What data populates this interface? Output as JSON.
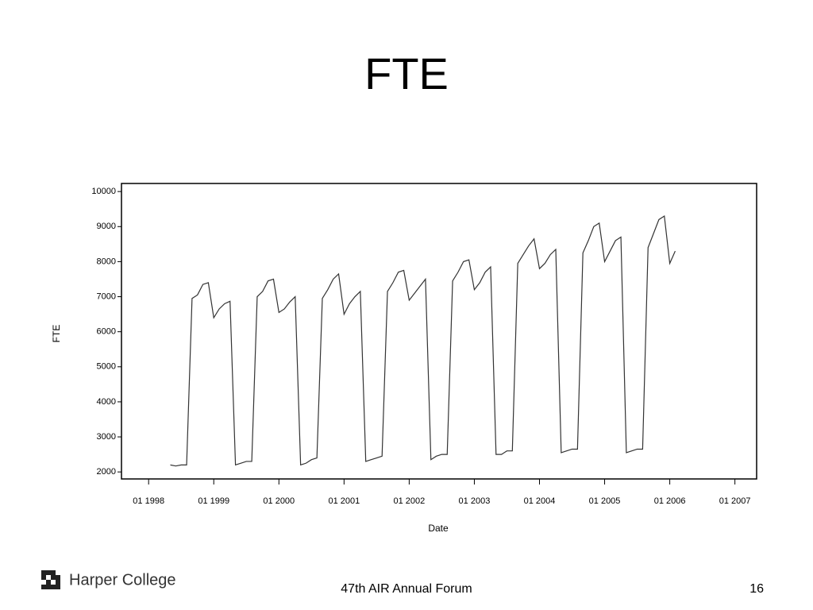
{
  "slide": {
    "title": "FTE",
    "footer_left": "Harper College",
    "footer_center": "47th AIR Annual Forum",
    "page_number": 16
  },
  "chart_data": {
    "type": "line",
    "xlabel": "Date",
    "ylabel": "FTE",
    "color": "#333333",
    "x": [
      "1998-05",
      "1998-06",
      "1998-07",
      "1998-08",
      "1998-09",
      "1998-10",
      "1998-11",
      "1998-12",
      "1999-01",
      "1999-02",
      "1999-03",
      "1999-04",
      "1999-05",
      "1999-06",
      "1999-07",
      "1999-08",
      "1999-09",
      "1999-10",
      "1999-11",
      "1999-12",
      "2000-01",
      "2000-02",
      "2000-03",
      "2000-04",
      "2000-05",
      "2000-06",
      "2000-07",
      "2000-08",
      "2000-09",
      "2000-10",
      "2000-11",
      "2000-12",
      "2001-01",
      "2001-02",
      "2001-03",
      "2001-04",
      "2001-05",
      "2001-06",
      "2001-07",
      "2001-08",
      "2001-09",
      "2001-10",
      "2001-11",
      "2001-12",
      "2002-01",
      "2002-02",
      "2002-03",
      "2002-04",
      "2002-05",
      "2002-06",
      "2002-07",
      "2002-08",
      "2002-09",
      "2002-10",
      "2002-11",
      "2002-12",
      "2003-01",
      "2003-02",
      "2003-03",
      "2003-04",
      "2003-05",
      "2003-06",
      "2003-07",
      "2003-08",
      "2003-09",
      "2003-10",
      "2003-11",
      "2003-12",
      "2004-01",
      "2004-02",
      "2004-03",
      "2004-04",
      "2004-05",
      "2004-06",
      "2004-07",
      "2004-08",
      "2004-09",
      "2004-10",
      "2004-11",
      "2004-12",
      "2005-01",
      "2005-02",
      "2005-03",
      "2005-04",
      "2005-05",
      "2005-06",
      "2005-07",
      "2005-08",
      "2005-09",
      "2005-10",
      "2005-11",
      "2005-12",
      "2006-01",
      "2006-02"
    ],
    "values": [
      2200,
      2170,
      2200,
      2200,
      6950,
      7050,
      7350,
      7400,
      6400,
      6650,
      6800,
      6870,
      2200,
      2250,
      2300,
      2300,
      7000,
      7150,
      7450,
      7500,
      6550,
      6650,
      6850,
      7000,
      2200,
      2250,
      2350,
      2400,
      6950,
      7200,
      7500,
      7650,
      6500,
      6800,
      7000,
      7150,
      2300,
      2350,
      2400,
      2450,
      7150,
      7400,
      7700,
      7750,
      6900,
      7100,
      7300,
      7500,
      2350,
      2450,
      2500,
      2500,
      7450,
      7700,
      8000,
      8050,
      7200,
      7400,
      7700,
      7850,
      2500,
      2500,
      2600,
      2600,
      7950,
      8200,
      8450,
      8650,
      7800,
      7950,
      8200,
      8350,
      2550,
      2600,
      2650,
      2650,
      8250,
      8600,
      9000,
      9100,
      8000,
      8300,
      8600,
      8700,
      2550,
      2600,
      2650,
      2650,
      8400,
      8800,
      9200,
      9300,
      7950,
      8300
    ],
    "xlim": [
      "1997-08",
      "2007-05"
    ],
    "xticks": [
      {
        "value": "1998-01",
        "label": "01 1998"
      },
      {
        "value": "1999-01",
        "label": "01 1999"
      },
      {
        "value": "2000-01",
        "label": "01 2000"
      },
      {
        "value": "2001-01",
        "label": "01 2001"
      },
      {
        "value": "2002-01",
        "label": "01 2002"
      },
      {
        "value": "2003-01",
        "label": "01 2003"
      },
      {
        "value": "2004-01",
        "label": "01 2004"
      },
      {
        "value": "2005-01",
        "label": "01 2005"
      },
      {
        "value": "2006-01",
        "label": "01 2006"
      },
      {
        "value": "2007-01",
        "label": "01 2007"
      }
    ],
    "ylim": [
      1800,
      10230
    ],
    "yticks": [
      2000,
      3000,
      4000,
      5000,
      6000,
      7000,
      8000,
      9000,
      10000
    ]
  }
}
